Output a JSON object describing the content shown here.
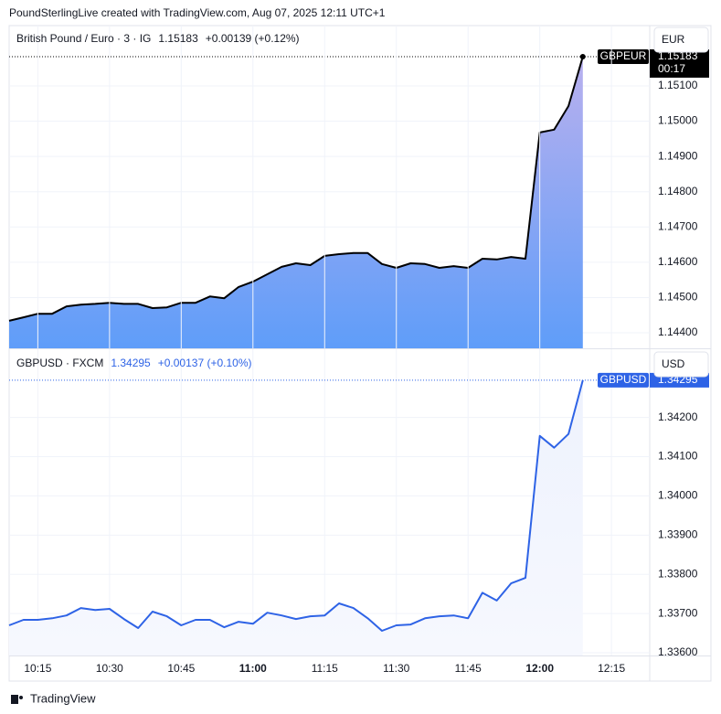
{
  "header": "PoundSterlingLive created with TradingView.com, Aug 07, 2025 12:11 UTC+1",
  "footer": "TradingView",
  "chart_data": [
    {
      "type": "area",
      "title": "British Pound / Euro · 3 · IG",
      "change": "+0.00139 (+0.12%)",
      "currency": "EUR",
      "countdown": "00:17",
      "fill_top": "#b9b0ee",
      "fill_bottom": "#5f9df9",
      "grid": true,
      "x": [
        "10:09",
        "10:12",
        "10:15",
        "10:18",
        "10:21",
        "10:24",
        "10:27",
        "10:30",
        "10:33",
        "10:36",
        "10:39",
        "10:42",
        "10:45",
        "10:48",
        "10:51",
        "10:54",
        "10:57",
        "11:00",
        "11:03",
        "11:06",
        "11:09",
        "11:12",
        "11:15",
        "11:18",
        "11:21",
        "11:24",
        "11:27",
        "11:30",
        "11:33",
        "11:36",
        "11:39",
        "11:42",
        "11:45",
        "11:48",
        "11:51",
        "11:54",
        "11:57",
        "12:00",
        "12:03",
        "12:06",
        "12:09"
      ],
      "series": [
        {
          "name": "GBPEUR",
          "color": "#000000",
          "values": [
            1.14434,
            1.14444,
            1.14454,
            1.14454,
            1.14475,
            1.1448,
            1.14482,
            1.14485,
            1.14482,
            1.14482,
            1.1447,
            1.14472,
            1.14485,
            1.14485,
            1.14503,
            1.14498,
            1.1453,
            1.14545,
            1.14566,
            1.14587,
            1.14597,
            1.14592,
            1.14618,
            1.14623,
            1.14626,
            1.14626,
            1.14595,
            1.14584,
            1.14597,
            1.14595,
            1.14584,
            1.14589,
            1.14584,
            1.1461,
            1.14608,
            1.14615,
            1.1461,
            1.14968,
            1.14976,
            1.15043,
            1.15183
          ]
        }
      ],
      "xlim": [
        "10:09",
        "12:23"
      ],
      "ylim": [
        1.14356,
        1.15271
      ],
      "yticks": [
        {
          "value": 1.144,
          "label": "1.14400"
        },
        {
          "value": 1.145,
          "label": "1.14500"
        },
        {
          "value": 1.146,
          "label": "1.14600"
        },
        {
          "value": 1.147,
          "label": "1.14700"
        },
        {
          "value": 1.148,
          "label": "1.14800"
        },
        {
          "value": 1.149,
          "label": "1.14900"
        },
        {
          "value": 1.15,
          "label": "1.15000"
        },
        {
          "value": 1.151,
          "label": "1.15100"
        }
      ]
    },
    {
      "type": "area",
      "title": "GBPUSD · FXCM",
      "change": "+0.00137 (+0.10%)",
      "currency": "USD",
      "fill_top": "#eef2fd",
      "fill_bottom": "#f6f8fe",
      "grid": true,
      "x": [
        "10:09",
        "10:12",
        "10:15",
        "10:18",
        "10:21",
        "10:24",
        "10:27",
        "10:30",
        "10:33",
        "10:36",
        "10:39",
        "10:42",
        "10:45",
        "10:48",
        "10:51",
        "10:54",
        "10:57",
        "11:00",
        "11:03",
        "11:06",
        "11:09",
        "11:12",
        "11:15",
        "11:18",
        "11:21",
        "11:24",
        "11:27",
        "11:30",
        "11:33",
        "11:36",
        "11:39",
        "11:42",
        "11:45",
        "11:48",
        "11:51",
        "11:54",
        "11:57",
        "12:00",
        "12:03",
        "12:06",
        "12:09"
      ],
      "series": [
        {
          "name": "GBPUSD",
          "color": "#2e63e6",
          "values": [
            1.3367,
            1.33684,
            1.33684,
            1.33688,
            1.33695,
            1.33714,
            1.33709,
            1.33712,
            1.33686,
            1.33663,
            1.33705,
            1.33693,
            1.3367,
            1.33684,
            1.33684,
            1.33665,
            1.33679,
            1.33674,
            1.33702,
            1.33695,
            1.33686,
            1.33693,
            1.33695,
            1.33726,
            1.33714,
            1.33688,
            1.33656,
            1.3367,
            1.33672,
            1.33688,
            1.33693,
            1.33695,
            1.33688,
            1.33753,
            1.33733,
            1.33777,
            1.33791,
            1.34153,
            1.34123,
            1.34158,
            1.34295
          ]
        }
      ],
      "xlim": [
        "10:09",
        "12:23"
      ],
      "xticks": [
        "10:15",
        "10:30",
        "10:45",
        "11:00",
        "11:15",
        "11:30",
        "11:45",
        "12:00",
        "12:15"
      ],
      "ylim": [
        1.33593,
        1.34374
      ],
      "yticks": [
        {
          "value": 1.336,
          "label": "1.33600"
        },
        {
          "value": 1.337,
          "label": "1.33700"
        },
        {
          "value": 1.338,
          "label": "1.33800"
        },
        {
          "value": 1.339,
          "label": "1.33900"
        },
        {
          "value": 1.34,
          "label": "1.34000"
        },
        {
          "value": 1.341,
          "label": "1.34100"
        },
        {
          "value": 1.342,
          "label": "1.34200"
        }
      ]
    }
  ]
}
